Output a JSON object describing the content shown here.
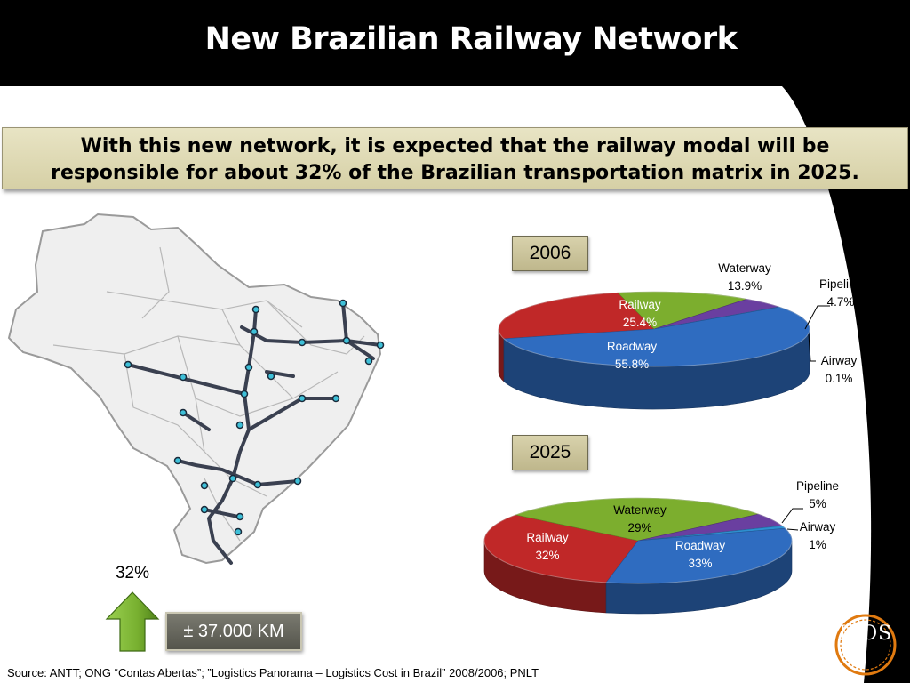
{
  "slide": {
    "title": "New Brazilian Railway Network",
    "banner_line1": "With this new network, it is expected that the railway modal will be",
    "banner_line2": "responsible for about 32% of the Brazilian transportation matrix in 2025.",
    "growth_value": "32%",
    "network_length": "± 37.000 KM",
    "source": "Source: ANTT; ONG “Contas Abertas”; ”Logistics Panorama – Logistics Cost in Brazil” 2008/2006; PNLT",
    "logo": "ILOS"
  },
  "colors": {
    "railway": "#c02828",
    "waterway": "#7cae2e",
    "pipeline": "#6a3fa0",
    "airway": "#2e8fd0",
    "roadway": "#2f6cc0",
    "arrow": "#7bb33a",
    "logo": "#e07a10"
  },
  "chart_data": [
    {
      "type": "pie",
      "title": "2006",
      "legend": "labels",
      "slices": [
        {
          "name": "Railway",
          "value": 25.4,
          "label": "25.4%",
          "color_key": "railway"
        },
        {
          "name": "Waterway",
          "value": 13.9,
          "label": "13.9%",
          "color_key": "waterway"
        },
        {
          "name": "Pipeline",
          "value": 4.7,
          "label": "4.7%",
          "color_key": "pipeline"
        },
        {
          "name": "Airway",
          "value": 0.1,
          "label": "0.1%",
          "color_key": "airway"
        },
        {
          "name": "Roadway",
          "value": 55.8,
          "label": "55.8%",
          "color_key": "roadway"
        }
      ]
    },
    {
      "type": "pie",
      "title": "2025",
      "legend": "labels",
      "slices": [
        {
          "name": "Railway",
          "value": 32,
          "label": "32%",
          "color_key": "railway"
        },
        {
          "name": "Waterway",
          "value": 29,
          "label": "29%",
          "color_key": "waterway"
        },
        {
          "name": "Pipeline",
          "value": 5,
          "label": "5%",
          "color_key": "pipeline"
        },
        {
          "name": "Airway",
          "value": 1,
          "label": "1%",
          "color_key": "airway"
        },
        {
          "name": "Roadway",
          "value": 33,
          "label": "33%",
          "color_key": "roadway"
        }
      ]
    }
  ]
}
